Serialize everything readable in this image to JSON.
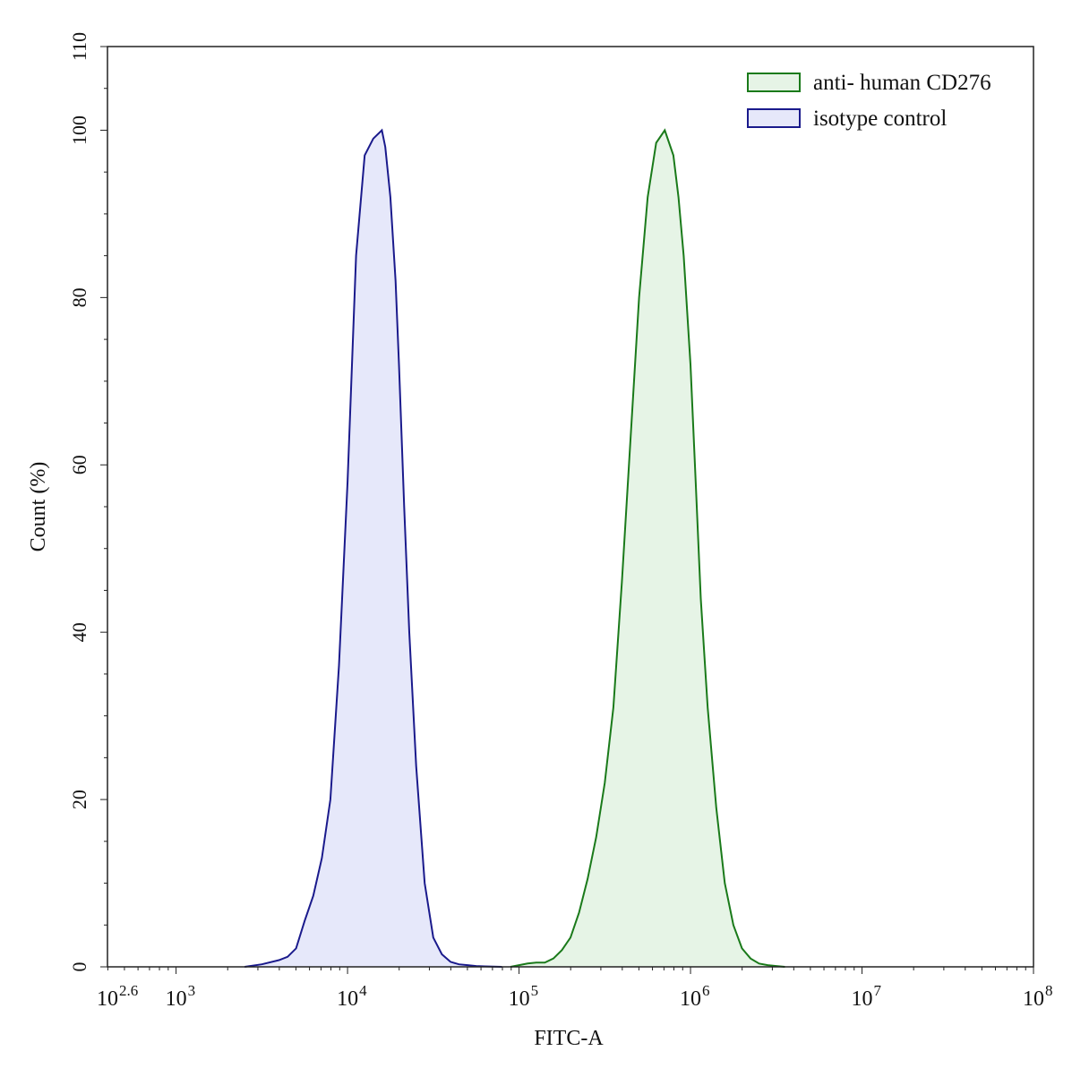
{
  "chart_data": {
    "type": "area",
    "xlabel": "FITC-A",
    "ylabel": "Count (%)",
    "x_scale": "log10",
    "xlim_exponent": [
      2.6,
      8
    ],
    "ylim": [
      0,
      110
    ],
    "grid": false,
    "legend_position": "top-right",
    "y_ticks": [
      "0",
      "20",
      "40",
      "60",
      "80",
      "100",
      "110"
    ],
    "x_ticks": [
      {
        "base": "10",
        "exp": "2.6"
      },
      {
        "base": "10",
        "exp": "3"
      },
      {
        "base": "10",
        "exp": "4"
      },
      {
        "base": "10",
        "exp": "5"
      },
      {
        "base": "10",
        "exp": "6"
      },
      {
        "base": "10",
        "exp": "7"
      },
      {
        "base": "10",
        "exp": "8"
      }
    ],
    "series": [
      {
        "name": "anti- human CD276",
        "stroke": "#1a7a1a",
        "fill": "#e6f4e6",
        "log10_x": [
          4.95,
          5.0,
          5.05,
          5.1,
          5.15,
          5.2,
          5.25,
          5.3,
          5.35,
          5.4,
          5.45,
          5.5,
          5.55,
          5.6,
          5.65,
          5.7,
          5.75,
          5.8,
          5.85,
          5.9,
          5.93,
          5.96,
          6.0,
          6.03,
          6.06,
          6.1,
          6.15,
          6.2,
          6.25,
          6.3,
          6.35,
          6.4,
          6.45,
          6.5,
          6.55
        ],
        "y": [
          0,
          0.2,
          0.4,
          0.5,
          0.5,
          1.0,
          2.0,
          3.5,
          6.5,
          10.5,
          15.5,
          22,
          31,
          46,
          63,
          80,
          92,
          98.5,
          100,
          97,
          92,
          85,
          72,
          58,
          44,
          31,
          19,
          10,
          5,
          2.2,
          1.0,
          0.4,
          0.2,
          0.1,
          0
        ]
      },
      {
        "name": "isotype control",
        "stroke": "#1a1a8c",
        "fill": "#e6e8fa",
        "log10_x": [
          3.4,
          3.5,
          3.6,
          3.65,
          3.7,
          3.75,
          3.8,
          3.85,
          3.9,
          3.95,
          4.0,
          4.05,
          4.1,
          4.15,
          4.2,
          4.22,
          4.25,
          4.28,
          4.3,
          4.33,
          4.36,
          4.4,
          4.45,
          4.5,
          4.55,
          4.6,
          4.65,
          4.7,
          4.75,
          4.8,
          4.9
        ],
        "y": [
          0,
          0.3,
          0.8,
          1.2,
          2.2,
          5.5,
          8.5,
          13,
          20,
          36,
          58,
          85,
          97,
          99,
          100,
          98,
          92,
          82,
          72,
          55,
          40,
          24,
          10,
          3.5,
          1.5,
          0.6,
          0.3,
          0.2,
          0.1,
          0.05,
          0
        ]
      }
    ]
  }
}
